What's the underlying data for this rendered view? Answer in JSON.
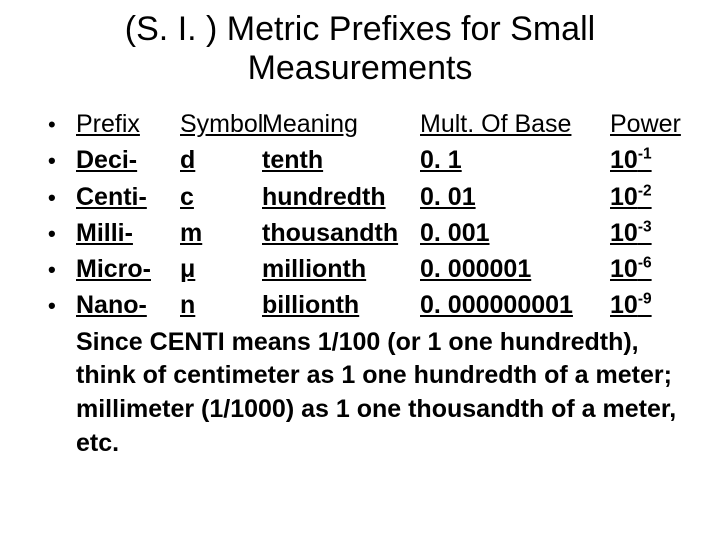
{
  "title": "(S. I. ) Metric Prefixes for Small Measurements",
  "header": {
    "prefix": "Prefix",
    "symbol": "Symbol",
    "meaning": "Meaning",
    "mult": "Mult. Of Base",
    "power": "Power"
  },
  "rows": [
    {
      "prefix": "Deci-",
      "symbol": "d",
      "meaning": "tenth",
      "mult": "0. 1",
      "power_base": "10",
      "power_exp": "-1"
    },
    {
      "prefix": "Centi-",
      "symbol": "c",
      "meaning": "hundredth",
      "mult": "0. 01",
      "power_base": "10",
      "power_exp": "-2"
    },
    {
      "prefix": "Milli-",
      "symbol": "m",
      "meaning": "thousandth",
      "mult": "0. 001",
      "power_base": "10",
      "power_exp": "-3"
    },
    {
      "prefix": "Micro-",
      "symbol": "μ",
      "meaning": "millionth",
      "mult": "0. 000001",
      "power_base": "10",
      "power_exp": "-6"
    },
    {
      "prefix": "Nano-",
      "symbol": "n",
      "meaning": "billionth",
      "mult": "0. 000000001",
      "power_base": "10",
      "power_exp": "-9"
    }
  ],
  "explanation": "Since CENTI means 1/100 (or 1 one hundredth), think of centimeter as 1 one hundredth of a meter; millimeter (1/1000) as 1 one thousandth of a meter, etc.",
  "style": {
    "background_color": "#ffffff",
    "text_color": "#000000",
    "title_fontsize": 34,
    "body_fontsize": 25,
    "font_family": "Arial"
  }
}
